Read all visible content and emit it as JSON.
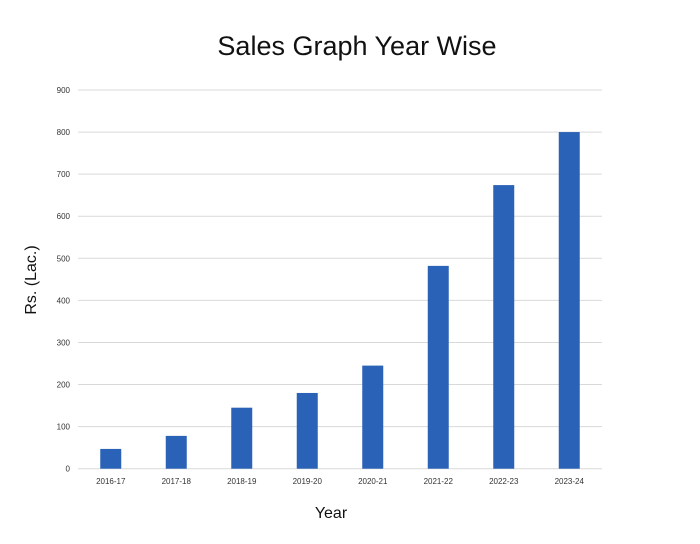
{
  "chart_data": {
    "type": "bar",
    "title": "Sales Graph Year Wise",
    "xlabel": "Year",
    "ylabel": "Rs. (Lac.)",
    "categories": [
      "2016-17",
      "2017-18",
      "2018-19",
      "2019-20",
      "2020-21",
      "2021-22",
      "2022-23",
      "2023-24"
    ],
    "values": [
      47,
      78,
      145,
      180,
      245,
      482,
      674,
      800
    ],
    "ylim": [
      0,
      900
    ],
    "yticks": [
      0,
      100,
      200,
      300,
      400,
      500,
      600,
      700,
      800,
      900
    ],
    "grid": true,
    "legend": "none",
    "bar_color": "#2a62b7",
    "grid_color": "#d9d9d9"
  }
}
